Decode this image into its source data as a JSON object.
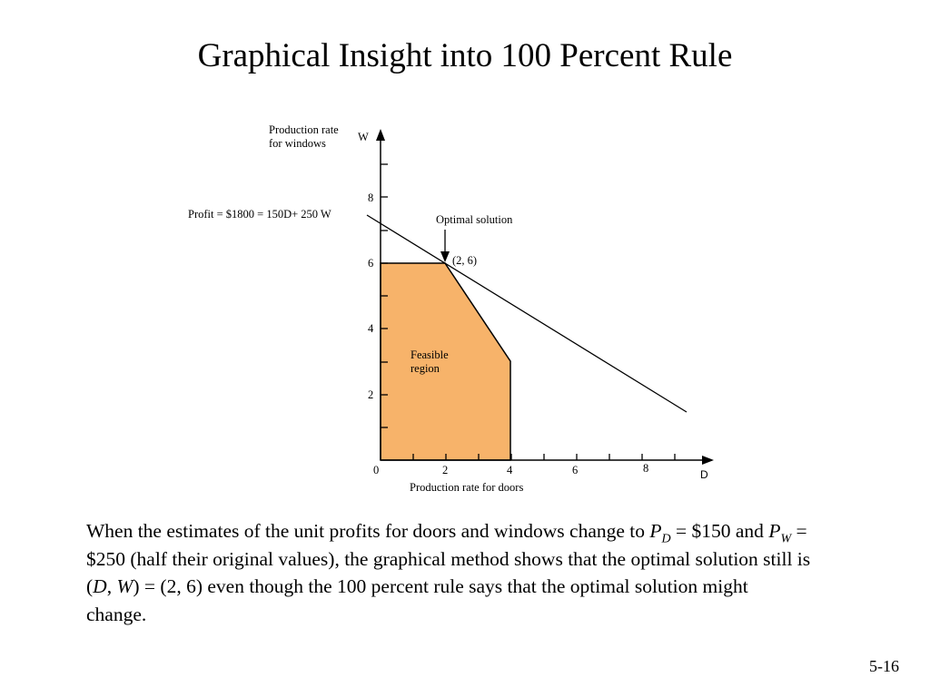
{
  "slide": {
    "title": "Graphical Insight into 100 Percent Rule",
    "number": "5-16"
  },
  "graph": {
    "y_axis_title_line1": "Production rate",
    "y_axis_title_line2": "for windows",
    "y_axis_var": "W",
    "x_axis_title": "Production rate for doors",
    "x_axis_var": "D",
    "origin_label": "0",
    "x_ticks": [
      "2",
      "4",
      "6",
      "8"
    ],
    "y_ticks": [
      "2",
      "4",
      "6",
      "8"
    ],
    "profit_line_label": "Profit = $1800 = 150D+ 250 W",
    "optimal_label": "Optimal solution",
    "optimal_point_label": "(2, 6)",
    "feasible_line1": "Feasible",
    "feasible_line2": "region",
    "feasible_color": "#F7B36A"
  },
  "caption": {
    "p1": "When the estimates of the unit profits for doors and windows change to ",
    "pd_letter": "P",
    "pd_sub": "D",
    "p2": " = $150 and ",
    "pw_letter": "P",
    "pw_sub": "W",
    "p3": " = $250 (half their original values), the graphical method shows that the optimal solution still is (",
    "d_var": "D",
    "comma": ", ",
    "w_var": "W",
    "p4": ") = (2, 6) even though the 100 percent rule says that the optimal solution might change."
  }
}
